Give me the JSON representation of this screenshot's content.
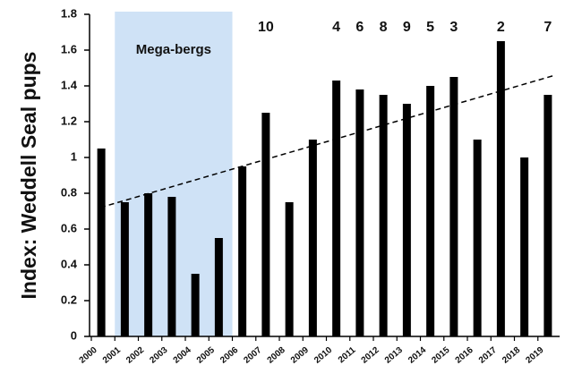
{
  "chart_data": {
    "type": "bar",
    "y_label": "Index: Weddell Seal pups",
    "categories": [
      "2000",
      "2001",
      "2002",
      "2003",
      "2004",
      "2005",
      "2006",
      "2007",
      "2008",
      "2009",
      "2010",
      "2011",
      "2012",
      "2013",
      "2014",
      "2015",
      "2016",
      "2017",
      "2018",
      "2019"
    ],
    "values": [
      1.05,
      0.75,
      0.8,
      0.78,
      0.35,
      0.55,
      0.95,
      1.25,
      0.75,
      1.1,
      1.43,
      1.38,
      1.35,
      1.3,
      1.4,
      1.45,
      1.1,
      1.65,
      1.0,
      1.35
    ],
    "color": "#000000",
    "ylim": [
      0,
      1.8
    ],
    "yticks": [
      0,
      0.2,
      0.4,
      0.6,
      0.8,
      1,
      1.2,
      1.4,
      1.6,
      1.8
    ],
    "grid": false,
    "shaded_region": {
      "label": "Mega-bergs",
      "from": "2001",
      "to": "2005",
      "color": "#cfe2f6"
    },
    "trend": {
      "start": 0.72,
      "end": 1.46,
      "color": "#000000"
    },
    "annotations": [
      {
        "category": "2007",
        "text": "10"
      },
      {
        "category": "2010",
        "text": "4"
      },
      {
        "category": "2011",
        "text": "6"
      },
      {
        "category": "2012",
        "text": "8"
      },
      {
        "category": "2013",
        "text": "9"
      },
      {
        "category": "2014",
        "text": "5"
      },
      {
        "category": "2015",
        "text": "3"
      },
      {
        "category": "2017",
        "text": "2"
      },
      {
        "category": "2019",
        "text": "7"
      }
    ]
  }
}
